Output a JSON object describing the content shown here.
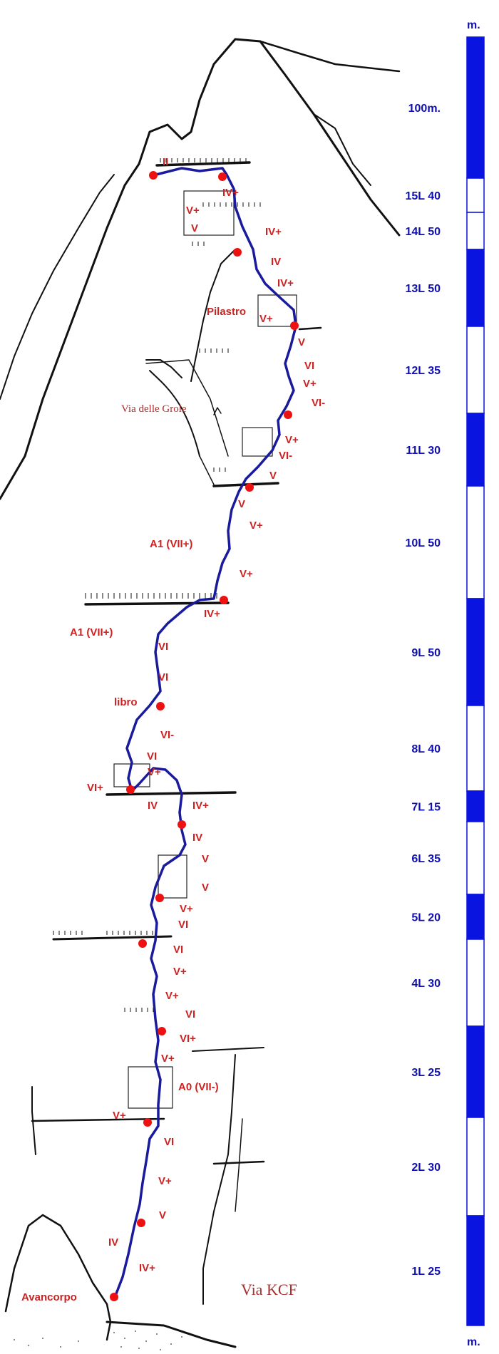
{
  "scale": {
    "unit_top": "m.",
    "unit_bottom": "m.",
    "colors": {
      "filled": "#0a14e0",
      "empty": "#ffffff",
      "text": "#1010b0"
    },
    "segments": [
      {
        "filled": true,
        "label": "100m."
      },
      {
        "filled": false,
        "label": "15L 40"
      },
      {
        "filled": false,
        "label": "14L 50"
      },
      {
        "filled": true,
        "label": "13L 50"
      },
      {
        "filled": false,
        "label": "12L 35"
      },
      {
        "filled": true,
        "label": "11L 30"
      },
      {
        "filled": false,
        "label": "10L 50"
      },
      {
        "filled": true,
        "label": "9L 50"
      },
      {
        "filled": false,
        "label": "8L 40"
      },
      {
        "filled": true,
        "label": "7L 15"
      },
      {
        "filled": false,
        "label": "6L 35"
      },
      {
        "filled": true,
        "label": "5L 20"
      },
      {
        "filled": false,
        "label": "4L 30"
      },
      {
        "filled": true,
        "label": "3L 25"
      },
      {
        "filled": false,
        "label": "2L 30"
      },
      {
        "filled": true,
        "label": "1L 25"
      }
    ]
  },
  "route": {
    "line_color": "#1a1a9c",
    "belay_color": "#ee1111",
    "grade_color": "#cc2222"
  },
  "labels": {
    "pilastro": "Pilastro",
    "libro": "libro",
    "avancorpo": "Avancorpo",
    "via_grole": "Via delle Grole",
    "via_kcf": "Via  KCF"
  },
  "grades": [
    "II",
    "IV+",
    "V+",
    "V",
    "IV+",
    "IV",
    "IV+",
    "V+",
    "V",
    "VI",
    "V+",
    "VI-",
    "V+",
    "VI-",
    "V",
    "V",
    "V+",
    "A1 (VII+)",
    "V+",
    "IV+",
    "A1 (VII+)",
    "VI",
    "VI",
    "VI-",
    "VI",
    "V+",
    "VI+",
    "IV",
    "IV+",
    "IV",
    "V",
    "V",
    "V+",
    "VI",
    "VI",
    "V+",
    "V+",
    "VI",
    "VI+",
    "V+",
    "A0 (VII-)",
    "V+",
    "VI",
    "V+",
    "V",
    "IV",
    "IV+"
  ]
}
